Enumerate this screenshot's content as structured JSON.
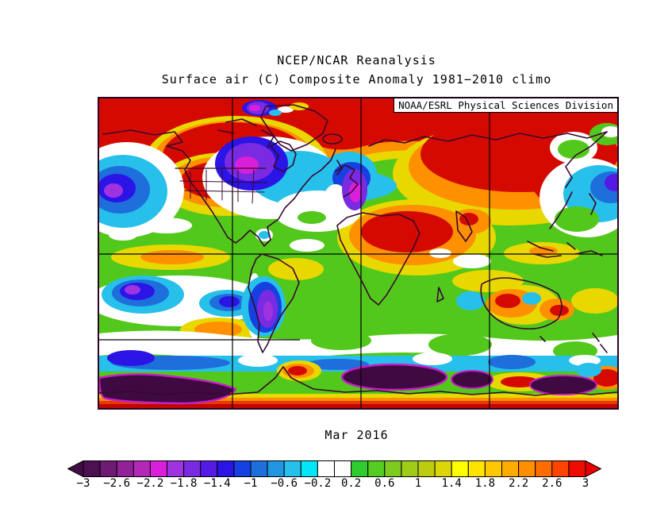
{
  "header": {
    "line1": "NCEP/NCAR Reanalysis",
    "line2": "Surface air (C) Composite Anomaly 1981−2010 climo"
  },
  "credit_box": {
    "label": "NOAA/ESRL Physical Sciences Division"
  },
  "date_label": "Mar 2016",
  "chart_data": {
    "type": "heatmap",
    "title": "NCEP/NCAR Reanalysis",
    "subtitle": "Surface air (C) Composite Anomaly 1981−2010 climo",
    "period_label": "Mar 2016",
    "credit": "NOAA/ESRL Physical Sciences Division",
    "variable": "Surface air temperature composite anomaly",
    "units": "C",
    "climatology": "1981−2010 climo",
    "projection": "global equirectangular world map",
    "map_grid": {
      "vertical_grid_lines": 3,
      "horizontal_grid_lines": 2,
      "grid_color": "#000000"
    },
    "colorbar": {
      "orientation": "horizontal",
      "range": [
        -3,
        3
      ],
      "cell_step": 0.2,
      "tick_values": [
        -3,
        -2.6,
        -2.2,
        -1.8,
        -1.4,
        -1,
        -0.6,
        -0.2,
        0.2,
        0.6,
        1,
        1.4,
        1.8,
        2.2,
        2.6,
        3
      ],
      "tick_labels": [
        "−3",
        "−2.6",
        "−2.2",
        "−1.8",
        "−1.4",
        "−1",
        "−0.6",
        "−0.2",
        "0.2",
        "0.6",
        "1",
        "1.4",
        "1.8",
        "2.2",
        "2.6",
        "3"
      ],
      "cell_colors": [
        "#4C1153",
        "#6E1B74",
        "#92229A",
        "#B428B8",
        "#DA1FDA",
        "#A033E0",
        "#7A2BE2",
        "#541BE4",
        "#2A14E6",
        "#1740E0",
        "#1E6EDC",
        "#2096E2",
        "#27C0EA",
        "#00E8F8",
        "#FFFFFF",
        "#FFFFFF",
        "#2ECC2E",
        "#55CC22",
        "#7CCB1E",
        "#9ECC18",
        "#BECC10",
        "#DCD608",
        "#FFFF00",
        "#FFE400",
        "#FFC800",
        "#FFAB00",
        "#FF8F00",
        "#FF6D00",
        "#FF4300",
        "#EE0C00"
      ],
      "under_range_color": "#420D45",
      "over_range_color": "#E80000"
    },
    "regions": [
      {
        "region": "Arctic / northern high latitudes",
        "anomaly_c": "> +3"
      },
      {
        "region": "Siberia and central/east Asia",
        "anomaly_c": "+2.2 to > +3"
      },
      {
        "region": "Alaska / western & central Canada",
        "anomaly_c": "+2.6 to > +3"
      },
      {
        "region": "Contiguous United States",
        "anomaly_c": "+1.8 to +3"
      },
      {
        "region": "Greenland",
        "anomaly_c": "+2.6 to > +3"
      },
      {
        "region": "NE Canada (Baffin / Labrador)",
        "anomaly_c": "−1.8 to −2.6"
      },
      {
        "region": "North Atlantic south of Greenland",
        "anomaly_c": "−0.6 to −1.4"
      },
      {
        "region": "Western Europe / Iberia / NW Africa",
        "anomaly_c": "−1.4 to −2.4"
      },
      {
        "region": "NE Pacific (Gulf of Alaska)",
        "anomaly_c": "−1 to −2.2"
      },
      {
        "region": "NW Pacific east of Japan",
        "anomaly_c": "−1 to −2.6"
      },
      {
        "region": "Sahara / Arabia / Middle East",
        "anomaly_c": "+2 to +3"
      },
      {
        "region": "Equatorial oceans",
        "anomaly_c": "+0.2 to +1"
      },
      {
        "region": "Central South Pacific",
        "anomaly_c": "−0.6 to −1.6"
      },
      {
        "region": "Argentina (southern South America)",
        "anomaly_c": "−1.4 to −2.4"
      },
      {
        "region": "Australian interior",
        "anomaly_c": "+1.4 to +2.6"
      },
      {
        "region": "Southern Ocean band near 55S",
        "anomaly_c": "−0.2 to −1"
      },
      {
        "region": "Antarctic coastal pockets",
        "anomaly_c": "< −3"
      },
      {
        "region": "Antarctic interior (map bottom)",
        "anomaly_c": "+2 to > +3"
      }
    ]
  }
}
